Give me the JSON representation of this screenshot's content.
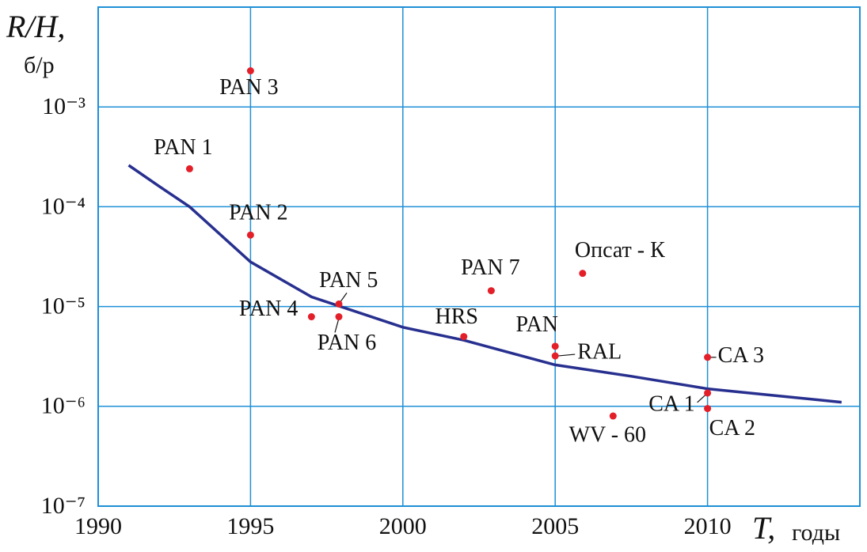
{
  "chart_data": {
    "type": "scatter",
    "y_label": "R/H,",
    "y_unit": "б/р",
    "x_label": "T,",
    "x_unit": "годы",
    "log_y": true,
    "grid": true,
    "xlim": [
      1990,
      2015
    ],
    "xticks": [
      1990,
      1995,
      2000,
      2005,
      2010
    ],
    "ylim": [
      1e-07,
      0.01
    ],
    "yticks": [
      {
        "value": 1e-07,
        "label": "10⁻⁷"
      },
      {
        "value": 1e-06,
        "label": "10⁻⁶"
      },
      {
        "value": 1e-05,
        "label": "10⁻⁵"
      },
      {
        "value": 0.0001,
        "label": "10⁻⁴"
      },
      {
        "value": 0.001,
        "label": "10⁻³"
      }
    ],
    "points": {
      "color": "#e3202a",
      "labels": [
        "PAN 3",
        "PAN 1",
        "PAN 2",
        "PAN 4",
        "PAN 5",
        "PAN 6",
        "HRS",
        "PAN 7",
        "Опсат - К",
        "PAN",
        "RAL",
        "CA 3",
        "CA 1",
        "CA 2",
        "WV - 60"
      ],
      "x": [
        1995,
        1993,
        1995,
        1997,
        1997.9,
        1997.9,
        2002,
        2002.9,
        2005.9,
        2005,
        2005,
        2010,
        2010,
        2010,
        2006.9
      ],
      "values": [
        0.0023,
        0.00024,
        5.2e-05,
        7.9e-06,
        1.06e-05,
        7.9e-06,
        5e-06,
        1.44e-05,
        2.15e-05,
        4e-06,
        3.2e-06,
        3.1e-06,
        1.36e-06,
        9.5e-07,
        8e-07
      ]
    },
    "curve": {
      "color": "#28308f",
      "x": [
        1991,
        1992,
        1993,
        1995,
        1997,
        2000,
        2002,
        2005,
        2007.5,
        2010,
        2012,
        2014.4
      ],
      "values": [
        0.00026,
        0.00016,
        0.0001,
        2.8e-05,
        1.25e-05,
        6.2e-06,
        4.6e-06,
        2.6e-06,
        2e-06,
        1.5e-06,
        1.3e-06,
        1.1e-06
      ]
    }
  }
}
